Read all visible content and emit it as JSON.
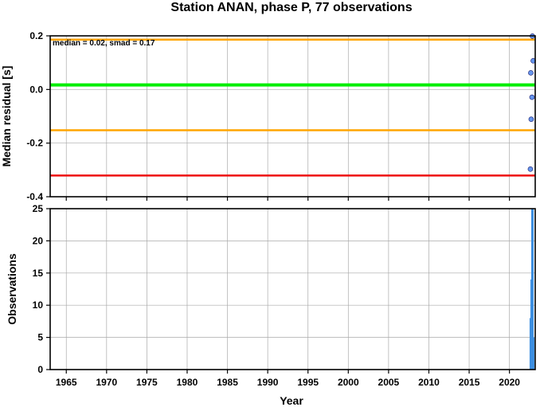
{
  "chart_data": [
    {
      "type": "scatter",
      "title": "Station ANAN, phase P, 77 observations",
      "xlabel": "",
      "ylabel": "Median residual [s]",
      "xlim": [
        1963,
        2023.2
      ],
      "ylim": [
        -0.4,
        0.2
      ],
      "yticks": [
        0.2,
        0.0,
        -0.2,
        -0.4
      ],
      "ytick_labels": [
        "0.2",
        "0.0",
        "-0.2",
        "-0.4"
      ],
      "grid": true,
      "annotation": "median = 0.02, smad = 0.17",
      "reference_lines": [
        {
          "y": 0.186,
          "color": "#ffa500"
        },
        {
          "y": 0.017,
          "color": "#00ee00"
        },
        {
          "y": -0.152,
          "color": "#ffa500"
        },
        {
          "y": -0.321,
          "color": "#ee1111"
        }
      ],
      "points": [
        {
          "x": 2022.85,
          "y": 0.199
        },
        {
          "x": 2022.95,
          "y": 0.107
        },
        {
          "x": 2022.65,
          "y": 0.062
        },
        {
          "x": 2022.8,
          "y": -0.029
        },
        {
          "x": 2022.7,
          "y": -0.111
        },
        {
          "x": 2022.6,
          "y": -0.297
        }
      ],
      "point_color": "#6495ed"
    },
    {
      "type": "bar",
      "title": "",
      "xlabel": "Year",
      "ylabel": "Observations",
      "xlim": [
        1963,
        2023.2
      ],
      "ylim": [
        0,
        25
      ],
      "xticks": [
        1965,
        1970,
        1975,
        1980,
        1985,
        1990,
        1995,
        2000,
        2005,
        2010,
        2015,
        2020
      ],
      "xtick_labels": [
        "1965",
        "1970",
        "1975",
        "1980",
        "1985",
        "1990",
        "1995",
        "2000",
        "2005",
        "2010",
        "2015",
        "2020"
      ],
      "yticks": [
        0,
        5,
        10,
        15,
        20,
        25
      ],
      "ytick_labels": [
        "0",
        "5",
        "10",
        "15",
        "20",
        "25"
      ],
      "grid": true,
      "bars": [
        {
          "x": 2022.6,
          "value": 8
        },
        {
          "x": 2022.7,
          "value": 14
        },
        {
          "x": 2022.8,
          "value": 25
        },
        {
          "x": 2022.9,
          "value": 25
        },
        {
          "x": 2023.0,
          "value": 5
        }
      ],
      "bar_color": "#3d8fe0"
    }
  ]
}
